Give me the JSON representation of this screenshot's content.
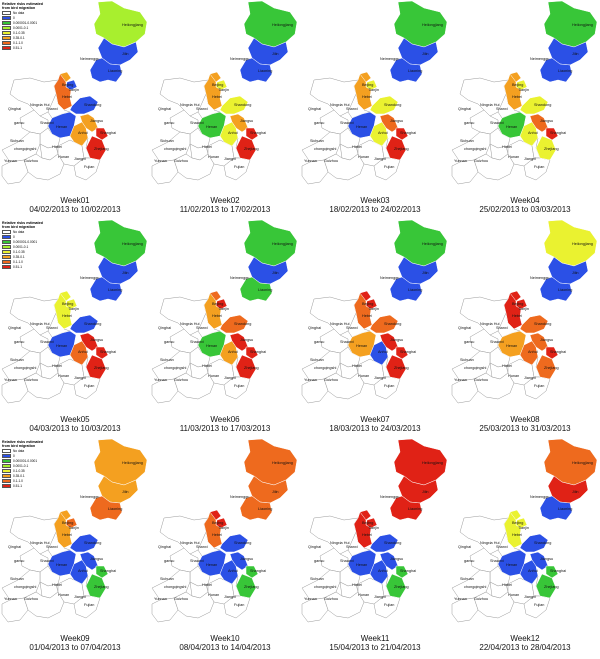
{
  "legend": {
    "title": [
      "Relative risks estimated",
      "from bird migration"
    ],
    "classes": [
      {
        "label": "No data",
        "color": "#ffffff"
      },
      {
        "label": "0",
        "color": "#2b50e6"
      },
      {
        "label": "0.000001-0.0001",
        "color": "#38c638"
      },
      {
        "label": "0.0001-0.1",
        "color": "#a8ef2e"
      },
      {
        "label": "0.1-0.35",
        "color": "#eaf230"
      },
      {
        "label": "0.35-0.1",
        "color": "#f4a020"
      },
      {
        "label": "0.1-1.0",
        "color": "#ee6a1e"
      },
      {
        "label": "0.51-1",
        "color": "#e02216"
      }
    ]
  },
  "province_labels": {
    "heilongjiang": "Heilongjiang",
    "jilin": "Jilin",
    "neimenggu": "Neimenggu",
    "liaoning": "Liaoning",
    "beijing": "Beijing",
    "tianjin": "Tianjin",
    "hebei": "Hebei",
    "shandong": "Shandong",
    "ningxia": "Ningxia Hui",
    "qinghai": "Qinghai",
    "shanxi": "Shanxi",
    "gansu": "gansu",
    "shaanxi": "Shaanxi",
    "henan": "Henan",
    "jiangsu": "Jiangsu",
    "anhui": "Anhui",
    "shanghai": "Shanghai",
    "zhejiang": "Zhejiang",
    "hubei": "Hubei",
    "sichuan": "Sichuan",
    "chongqing": "chongqingshi",
    "hunan": "Hunan",
    "jiangxi": "Jiangxi",
    "fujian": "Fujian",
    "yunnan": "Yunnan",
    "guizhou": "Guizhou"
  },
  "panels": [
    {
      "week": "Week01",
      "range": "04/02/2013 to 10/02/2013",
      "colors": {
        "heilongjiang": "#a8ef2e",
        "jilin": "#2b50e6",
        "liaoning": "#2b50e6",
        "beijing": "#f4a020",
        "tianjin": "#2b50e6",
        "hebei": "#ee6a1e",
        "shandong": "#2b50e6",
        "henan": "#2b50e6",
        "jiangsu": "#f4a020",
        "anhui": "#f4a020",
        "shanghai": "#e02216",
        "zhejiang": "#e02216"
      }
    },
    {
      "week": "Week02",
      "range": "11/02/2013 to 17/02/2013",
      "colors": {
        "heilongjiang": "#38c638",
        "jilin": "#2b50e6",
        "liaoning": "#2b50e6",
        "beijing": "#f4a020",
        "tianjin": "#eaf230",
        "hebei": "#f4a020",
        "shandong": "#eaf230",
        "henan": "#38c638",
        "jiangsu": "#f4a020",
        "anhui": "#eaf230",
        "shanghai": "#e02216",
        "zhejiang": "#e02216"
      }
    },
    {
      "week": "Week03",
      "range": "18/02/2013 to 24/02/2013",
      "colors": {
        "heilongjiang": "#38c638",
        "jilin": "#2b50e6",
        "liaoning": "#2b50e6",
        "beijing": "#f4a020",
        "tianjin": "#eaf230",
        "hebei": "#f4a020",
        "shandong": "#eaf230",
        "henan": "#2b50e6",
        "jiangsu": "#ee6a1e",
        "anhui": "#eaf230",
        "shanghai": "#e02216",
        "zhejiang": "#e02216"
      }
    },
    {
      "week": "Week04",
      "range": "25/02/2013 to 03/03/2013",
      "colors": {
        "heilongjiang": "#38c638",
        "jilin": "#2b50e6",
        "liaoning": "#2b50e6",
        "beijing": "#f4a020",
        "tianjin": "#eaf230",
        "hebei": "#f4a020",
        "shandong": "#eaf230",
        "henan": "#38c638",
        "jiangsu": "#ee6a1e",
        "anhui": "#eaf230",
        "shanghai": "#e02216",
        "zhejiang": "#eaf230"
      }
    },
    {
      "week": "Week05",
      "range": "04/03/2013 to 10/03/2013",
      "colors": {
        "heilongjiang": "#38c638",
        "jilin": "#2b50e6",
        "liaoning": "#2b50e6",
        "beijing": "#eaf230",
        "tianjin": "#eaf230",
        "hebei": "#eaf230",
        "shandong": "#2b50e6",
        "henan": "#2b50e6",
        "jiangsu": "#e02216",
        "anhui": "#ee6a1e",
        "shanghai": "#e02216",
        "zhejiang": "#e02216"
      }
    },
    {
      "week": "Week06",
      "range": "11/03/2013 to 17/03/2013",
      "colors": {
        "heilongjiang": "#38c638",
        "jilin": "#2b50e6",
        "liaoning": "#38c638",
        "beijing": "#ee6a1e",
        "tianjin": "#e02216",
        "hebei": "#f4a020",
        "shandong": "#ee6a1e",
        "henan": "#38c638",
        "jiangsu": "#e02216",
        "anhui": "#f4a020",
        "shanghai": "#e02216",
        "zhejiang": "#e02216"
      }
    },
    {
      "week": "Week07",
      "range": "18/03/2013 to 24/03/2013",
      "colors": {
        "heilongjiang": "#38c638",
        "jilin": "#2b50e6",
        "liaoning": "#2b50e6",
        "beijing": "#e02216",
        "tianjin": "#e02216",
        "hebei": "#ee6a1e",
        "shandong": "#ee6a1e",
        "henan": "#f4a020",
        "jiangsu": "#e02216",
        "anhui": "#2b50e6",
        "shanghai": "#e02216",
        "zhejiang": "#e02216"
      }
    },
    {
      "week": "Week08",
      "range": "25/03/2013 to 31/03/2013",
      "colors": {
        "heilongjiang": "#eaf230",
        "jilin": "#2b50e6",
        "liaoning": "#2b50e6",
        "beijing": "#e02216",
        "tianjin": "#e02216",
        "hebei": "#e02216",
        "shandong": "#ee6a1e",
        "henan": "#f4a020",
        "jiangsu": "#ee6a1e",
        "anhui": "#ee6a1e",
        "shanghai": "#e02216",
        "zhejiang": "#ee6a1e"
      }
    },
    {
      "week": "Week09",
      "range": "01/04/2013 to 07/04/2013",
      "colors": {
        "heilongjiang": "#f4a020",
        "jilin": "#f4a020",
        "liaoning": "#ee6a1e",
        "beijing": "#f4a020",
        "tianjin": "#ee6a1e",
        "hebei": "#f4a020",
        "shandong": "#2b50e6",
        "henan": "#2b50e6",
        "jiangsu": "#2b50e6",
        "anhui": "#2b50e6",
        "shanghai": "#38c638",
        "zhejiang": "#38c638"
      }
    },
    {
      "week": "Week10",
      "range": "08/04/2013 to 14/04/2013",
      "colors": {
        "heilongjiang": "#ee6a1e",
        "jilin": "#ee6a1e",
        "liaoning": "#ee6a1e",
        "beijing": "#e02216",
        "tianjin": "#e02216",
        "hebei": "#ee6a1e",
        "shandong": "#2b50e6",
        "henan": "#2b50e6",
        "jiangsu": "#2b50e6",
        "anhui": "#2b50e6",
        "shanghai": "#38c638",
        "zhejiang": "#38c638"
      }
    },
    {
      "week": "Week11",
      "range": "15/04/2013 to 21/04/2013",
      "colors": {
        "heilongjiang": "#e02216",
        "jilin": "#e02216",
        "liaoning": "#e02216",
        "beijing": "#e02216",
        "tianjin": "#e02216",
        "hebei": "#e02216",
        "shandong": "#2b50e6",
        "henan": "#2b50e6",
        "jiangsu": "#2b50e6",
        "anhui": "#2b50e6",
        "shanghai": "#38c638",
        "zhejiang": "#38c638"
      }
    },
    {
      "week": "Week12",
      "range": "22/04/2013 to 28/04/2013",
      "colors": {
        "heilongjiang": "#ee6a1e",
        "jilin": "#e02216",
        "liaoning": "#2b50e6",
        "beijing": "#eaf230",
        "tianjin": "#eaf230",
        "hebei": "#eaf230",
        "shandong": "#2b50e6",
        "henan": "#2b50e6",
        "jiangsu": "#2b50e6",
        "anhui": "#2b50e6",
        "shanghai": "#38c638",
        "zhejiang": "#38c638"
      }
    }
  ]
}
